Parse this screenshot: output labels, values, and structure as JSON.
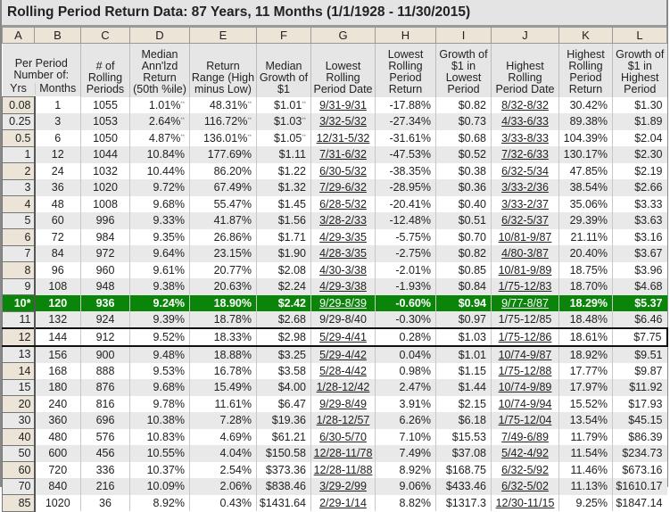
{
  "title": "Rolling Period Return Data: 87 Years, 11 Months (1/1/1928 - 11/30/2015)",
  "column_letters": [
    "A",
    "B",
    "C",
    "D",
    "E",
    "F",
    "G",
    "H",
    "I",
    "J",
    "K",
    "L"
  ],
  "headers": {
    "ab": "Per Period Number of:",
    "a": "Yrs",
    "b": "Months",
    "c": "# of Rolling Periods",
    "d": "Median Ann'lzd Return (50th %ile)",
    "e": "Return Range (High minus Low)",
    "f": "Median Growth of $1",
    "g": "Lowest Rolling Period Date",
    "h": "Lowest Rolling Period Return",
    "i": "Growth of $1 in Lowest Period",
    "j": "Highest Rolling Period Date",
    "k": "Highest Rolling Period Return",
    "l": "Growth of $1 in Highest Period"
  },
  "note_mark": "**",
  "highlight_color": "#0a850a",
  "highlighted_row": "10*",
  "boxed_row": "12",
  "rows": [
    [
      "0.08",
      "1",
      "1055",
      "1.01%",
      "48.31%",
      "$1.01",
      "9/31-9/31",
      "-17.88%",
      "$0.82",
      "8/32-8/32",
      "30.42%",
      "$1.30"
    ],
    [
      "0.25",
      "3",
      "1053",
      "2.64%",
      "116.72%",
      "$1.03",
      "3/32-5/32",
      "-27.34%",
      "$0.73",
      "4/33-6/33",
      "89.38%",
      "$1.89"
    ],
    [
      "0.5",
      "6",
      "1050",
      "4.87%",
      "136.01%",
      "$1.05",
      "12/31-5/32",
      "-31.61%",
      "$0.68",
      "3/33-8/33",
      "104.39%",
      "$2.04"
    ],
    [
      "1",
      "12",
      "1044",
      "10.84%",
      "177.69%",
      "$1.11",
      "7/31-6/32",
      "-47.53%",
      "$0.52",
      "7/32-6/33",
      "130.17%",
      "$2.30"
    ],
    [
      "2",
      "24",
      "1032",
      "10.44%",
      "86.20%",
      "$1.22",
      "6/30-5/32",
      "-38.35%",
      "$0.38",
      "6/32-5/34",
      "47.85%",
      "$2.19"
    ],
    [
      "3",
      "36",
      "1020",
      "9.72%",
      "67.49%",
      "$1.32",
      "7/29-6/32",
      "-28.95%",
      "$0.36",
      "3/33-2/36",
      "38.54%",
      "$2.66"
    ],
    [
      "4",
      "48",
      "1008",
      "9.68%",
      "55.47%",
      "$1.45",
      "6/28-5/32",
      "-20.41%",
      "$0.40",
      "3/33-2/37",
      "35.06%",
      "$3.33"
    ],
    [
      "5",
      "60",
      "996",
      "9.33%",
      "41.87%",
      "$1.56",
      "3/28-2/33",
      "-12.48%",
      "$0.51",
      "6/32-5/37",
      "29.39%",
      "$3.63"
    ],
    [
      "6",
      "72",
      "984",
      "9.35%",
      "26.86%",
      "$1.71",
      "4/29-3/35",
      "-5.75%",
      "$0.70",
      "10/81-9/87",
      "21.11%",
      "$3.16"
    ],
    [
      "7",
      "84",
      "972",
      "9.64%",
      "23.15%",
      "$1.90",
      "4/28-3/35",
      "-2.75%",
      "$0.82",
      "4/80-3/87",
      "20.40%",
      "$3.67"
    ],
    [
      "8",
      "96",
      "960",
      "9.61%",
      "20.77%",
      "$2.08",
      "4/30-3/38",
      "-2.01%",
      "$0.85",
      "10/81-9/89",
      "18.75%",
      "$3.96"
    ],
    [
      "9",
      "108",
      "948",
      "9.38%",
      "20.63%",
      "$2.24",
      "4/29-3/38",
      "-1.93%",
      "$0.84",
      "1/75-12/83",
      "18.70%",
      "$4.68"
    ],
    [
      "10*",
      "120",
      "936",
      "9.24%",
      "18.90%",
      "$2.42",
      "9/29-8/39",
      "-0.60%",
      "$0.94",
      "9/77-8/87",
      "18.29%",
      "$5.37"
    ],
    [
      "11",
      "132",
      "924",
      "9.39%",
      "18.78%",
      "$2.68",
      "9/29-8/40",
      "-0.30%",
      "$0.97",
      "1/75-12/85",
      "18.48%",
      "$6.46"
    ],
    [
      "12",
      "144",
      "912",
      "9.52%",
      "18.33%",
      "$2.98",
      "5/29-4/41",
      "0.28%",
      "$1.03",
      "1/75-12/86",
      "18.61%",
      "$7.75"
    ],
    [
      "13",
      "156",
      "900",
      "9.48%",
      "18.88%",
      "$3.25",
      "5/29-4/42",
      "0.04%",
      "$1.01",
      "10/74-9/87",
      "18.92%",
      "$9.51"
    ],
    [
      "14",
      "168",
      "888",
      "9.53%",
      "16.78%",
      "$3.58",
      "5/28-4/42",
      "0.98%",
      "$1.15",
      "1/75-12/88",
      "17.77%",
      "$9.87"
    ],
    [
      "15",
      "180",
      "876",
      "9.68%",
      "15.49%",
      "$4.00",
      "1/28-12/42",
      "2.47%",
      "$1.44",
      "10/74-9/89",
      "17.97%",
      "$11.92"
    ],
    [
      "20",
      "240",
      "816",
      "9.78%",
      "11.61%",
      "$6.47",
      "9/29-8/49",
      "3.91%",
      "$2.15",
      "10/74-9/94",
      "15.52%",
      "$17.93"
    ],
    [
      "30",
      "360",
      "696",
      "10.38%",
      "7.28%",
      "$19.36",
      "1/28-12/57",
      "6.26%",
      "$6.18",
      "1/75-12/04",
      "13.54%",
      "$45.15"
    ],
    [
      "40",
      "480",
      "576",
      "10.83%",
      "4.69%",
      "$61.21",
      "6/30-5/70",
      "7.10%",
      "$15.53",
      "7/49-6/89",
      "11.79%",
      "$86.39"
    ],
    [
      "50",
      "600",
      "456",
      "10.55%",
      "4.04%",
      "$150.58",
      "12/28-11/78",
      "7.49%",
      "$37.08",
      "5/42-4/92",
      "11.54%",
      "$234.73"
    ],
    [
      "60",
      "720",
      "336",
      "10.37%",
      "2.54%",
      "$373.36",
      "12/28-11/88",
      "8.92%",
      "$168.75",
      "6/32-5/92",
      "11.46%",
      "$673.16"
    ],
    [
      "70",
      "840",
      "216",
      "10.09%",
      "2.06%",
      "$838.46",
      "3/29-2/99",
      "9.06%",
      "$433.46",
      "6/32-5/02",
      "11.13%",
      "$1610.17"
    ],
    [
      "85",
      "1020",
      "36",
      "8.92%",
      "0.43%",
      "$1431.64",
      "2/29-1/14",
      "8.82%",
      "$1317.3",
      "12/30-11/15",
      "9.25%",
      "$1847.14"
    ]
  ]
}
